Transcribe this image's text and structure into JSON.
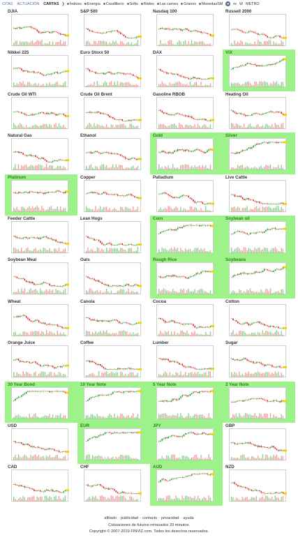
{
  "nav": {
    "tabs": [
      {
        "label": "CITAS",
        "active": false
      },
      {
        "label": "ACTUACIÓN",
        "active": false
      },
      {
        "label": "CARTAS",
        "active": true
      }
    ],
    "groups": [
      "Índices",
      "Energía",
      "Caudillerío",
      "Softs",
      "Rieles",
      "Las carnes",
      "Granos",
      "MonedasSM"
    ],
    "badge_icon": "h-circle-icon",
    "timeframes": [
      "re",
      "W",
      "METRO"
    ]
  },
  "accent_up": "#9df28a",
  "accent_down": "#ffffff",
  "tiles": [
    {
      "name": "DJIA",
      "trend": "down"
    },
    {
      "name": "S&P 500",
      "trend": "down"
    },
    {
      "name": "Nasdaq 100",
      "trend": "down"
    },
    {
      "name": "Russell 2000",
      "trend": "down"
    },
    {
      "name": "Nikkei 225",
      "trend": "down"
    },
    {
      "name": "Euro Stoxx 50",
      "trend": "down"
    },
    {
      "name": "DAX",
      "trend": "down"
    },
    {
      "name": "VIX",
      "trend": "up"
    },
    {
      "name": "Crude Oil WTI",
      "trend": "down"
    },
    {
      "name": "Crude Oil Brent",
      "trend": "down"
    },
    {
      "name": "Gasoline RBOB",
      "trend": "down"
    },
    {
      "name": "Heating Oil",
      "trend": "down"
    },
    {
      "name": "Natural Gas",
      "trend": "down"
    },
    {
      "name": "Ethanol",
      "trend": "down"
    },
    {
      "name": "Gold",
      "trend": "up"
    },
    {
      "name": "Silver",
      "trend": "up"
    },
    {
      "name": "Platinum",
      "trend": "up"
    },
    {
      "name": "Copper",
      "trend": "down"
    },
    {
      "name": "Palladium",
      "trend": "down"
    },
    {
      "name": "Live Cattle",
      "trend": "down"
    },
    {
      "name": "Feeder Cattle",
      "trend": "down"
    },
    {
      "name": "Lean Hogs",
      "trend": "down"
    },
    {
      "name": "Corn",
      "trend": "up"
    },
    {
      "name": "Soybean oil",
      "trend": "up"
    },
    {
      "name": "Soybean Meal",
      "trend": "down"
    },
    {
      "name": "Oats",
      "trend": "down"
    },
    {
      "name": "Rough Rice",
      "trend": "up"
    },
    {
      "name": "Soybeans",
      "trend": "up"
    },
    {
      "name": "Wheat",
      "trend": "down"
    },
    {
      "name": "Canola",
      "trend": "down"
    },
    {
      "name": "Cocoa",
      "trend": "down"
    },
    {
      "name": "Cotton",
      "trend": "down"
    },
    {
      "name": "Orange Juice",
      "trend": "down"
    },
    {
      "name": "Coffee",
      "trend": "down"
    },
    {
      "name": "Lumber",
      "trend": "down"
    },
    {
      "name": "Sugar",
      "trend": "down"
    },
    {
      "name": "30 Year Bond",
      "trend": "up"
    },
    {
      "name": "10 Year Note",
      "trend": "up"
    },
    {
      "name": "5 Year Note",
      "trend": "up"
    },
    {
      "name": "2 Year Note",
      "trend": "up"
    },
    {
      "name": "USD",
      "trend": "down"
    },
    {
      "name": "EUR",
      "trend": "up"
    },
    {
      "name": "JPY",
      "trend": "up"
    },
    {
      "name": "GBP",
      "trend": "down"
    },
    {
      "name": "CAD",
      "trend": "down"
    },
    {
      "name": "CHF",
      "trend": "down"
    },
    {
      "name": "AUD",
      "trend": "up"
    },
    {
      "name": "NZD",
      "trend": "down"
    }
  ],
  "footer": {
    "links": [
      "afiliado",
      "publicidad",
      "contacto",
      "privacidad",
      "ayuda"
    ],
    "line2": "Cotizaciones de futuros retrasados 20 minutos.",
    "line3": "Copyright © 2007-2019 FINVIZ.com. Todos los derechos reservados."
  }
}
